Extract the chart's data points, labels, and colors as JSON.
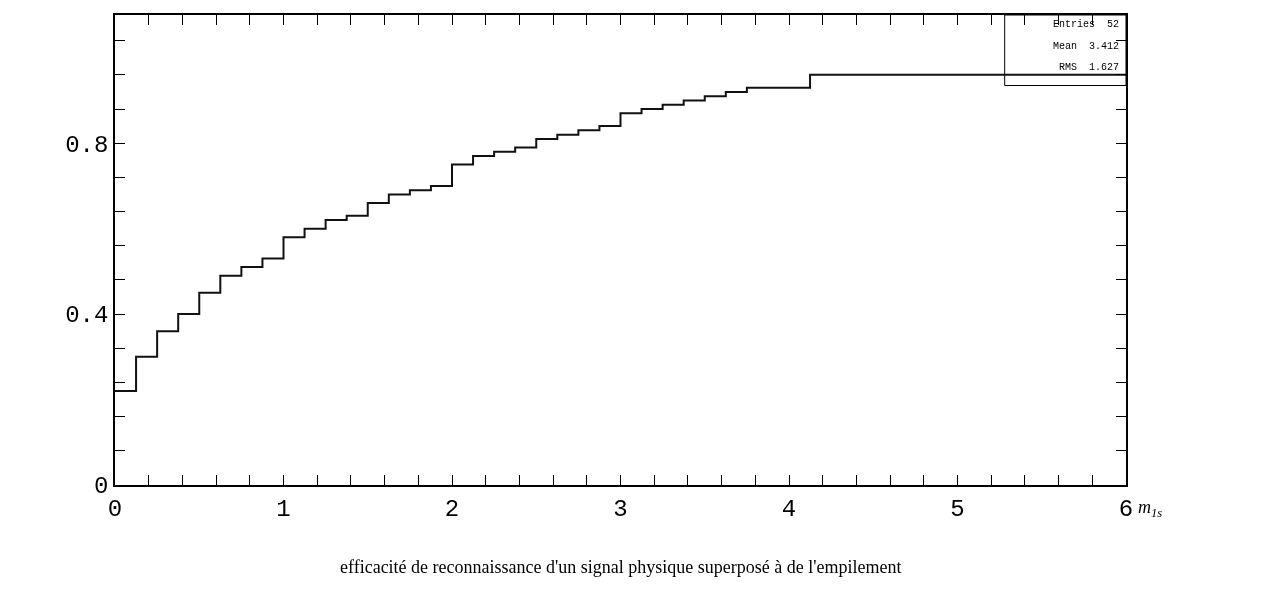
{
  "chart_data": {
    "type": "histogram",
    "xlabel": "m$_{1s}$",
    "bins": [
      0,
      0.125,
      0.25,
      0.375,
      0.5,
      0.625,
      0.75,
      0.875,
      1.0,
      1.125,
      1.25,
      1.375,
      1.5,
      1.625,
      1.75,
      1.875,
      2.0,
      2.125,
      2.25,
      2.375,
      2.5,
      2.625,
      2.75,
      2.875,
      3.0,
      3.125,
      3.25,
      3.375,
      3.5,
      3.625,
      3.75,
      3.875,
      4.0,
      4.125,
      6
    ],
    "values": [
      0.22,
      0.3,
      0.36,
      0.4,
      0.45,
      0.49,
      0.51,
      0.53,
      0.58,
      0.6,
      0.62,
      0.63,
      0.66,
      0.68,
      0.69,
      0.7,
      0.75,
      0.77,
      0.78,
      0.79,
      0.81,
      0.82,
      0.83,
      0.84,
      0.87,
      0.88,
      0.89,
      0.9,
      0.91,
      0.92,
      0.93,
      0.93,
      0.93,
      0.96
    ],
    "color": "#111111",
    "xlim": [
      0,
      6
    ],
    "xticks": [
      0,
      {
        "value": 0.2,
        "label": null
      },
      {
        "value": 0.4,
        "label": null
      },
      {
        "value": 0.6,
        "label": null
      },
      {
        "value": 0.8,
        "label": null
      },
      1,
      {
        "value": 1.2,
        "label": null
      },
      {
        "value": 1.4,
        "label": null
      },
      {
        "value": 1.6,
        "label": null
      },
      {
        "value": 1.8,
        "label": null
      },
      2,
      {
        "value": 2.2,
        "label": null
      },
      {
        "value": 2.4,
        "label": null
      },
      {
        "value": 2.6,
        "label": null
      },
      {
        "value": 2.8,
        "label": null
      },
      3,
      {
        "value": 3.2,
        "label": null
      },
      {
        "value": 3.4,
        "label": null
      },
      {
        "value": 3.6,
        "label": null
      },
      {
        "value": 3.8,
        "label": null
      },
      4,
      {
        "value": 4.2,
        "label": null
      },
      {
        "value": 4.4,
        "label": null
      },
      {
        "value": 4.6,
        "label": null
      },
      {
        "value": 4.8,
        "label": null
      },
      5,
      {
        "value": 5.2,
        "label": null
      },
      {
        "value": 5.4,
        "label": null
      },
      {
        "value": 5.6,
        "label": null
      },
      {
        "value": 5.8,
        "label": null
      },
      6
    ],
    "ylim": [
      0,
      1.1
    ],
    "yticks": [
      0,
      {
        "value": 0.08,
        "label": null
      },
      {
        "value": 0.16,
        "label": null
      },
      {
        "value": 0.24,
        "label": null
      },
      {
        "value": 0.32,
        "label": null
      },
      0.4,
      {
        "value": 0.48,
        "label": null
      },
      {
        "value": 0.56,
        "label": null
      },
      {
        "value": 0.64,
        "label": null
      },
      {
        "value": 0.72,
        "label": null
      },
      0.8,
      {
        "value": 0.88,
        "label": null
      },
      {
        "value": 0.96,
        "label": null
      },
      {
        "value": 1.04,
        "label": null
      }
    ],
    "annotations": [
      "Entries  52",
      "Mean  3.412",
      "RMS  1.627",
      "efficacité de reconnaissance d'un signal physique superposé à de l'empilement"
    ]
  }
}
